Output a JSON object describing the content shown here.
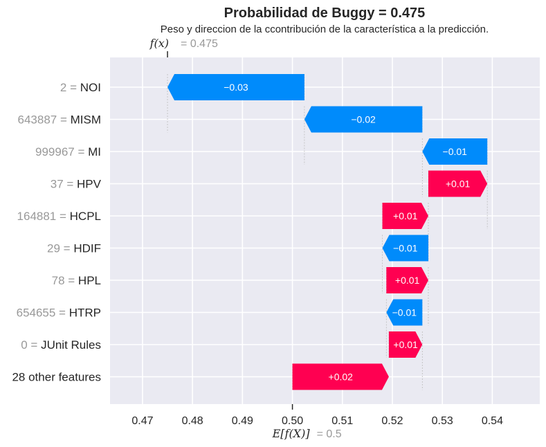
{
  "chart_data": {
    "type": "bar",
    "title": "Probabilidad de Buggy = 0.475",
    "subtitle": "Peso y direccion de la ccontribución de la característica a la predicción.",
    "fx_label": "f(x)",
    "fx_value_text": "= 0.475",
    "fx_value": 0.475,
    "base_label": "E[f(X)]",
    "base_value_text": "= 0.5",
    "base_value": 0.5,
    "xlim": [
      0.4635,
      0.5495
    ],
    "xticks": [
      0.47,
      0.48,
      0.49,
      0.5,
      0.51,
      0.52,
      0.53,
      0.54
    ],
    "xtick_labels": [
      "0.47",
      "0.48",
      "0.49",
      "0.50",
      "0.51",
      "0.52",
      "0.53",
      "0.54"
    ],
    "grid": true,
    "colors": {
      "positive": "#ff0051",
      "negative": "#008bfb",
      "background": "#eaeaf2",
      "grid": "#ffffff"
    },
    "features": [
      {
        "value": "2",
        "name": "NOI",
        "start": 0.5024,
        "end": 0.475,
        "label": "−0.03"
      },
      {
        "value": "643887",
        "name": "MISM",
        "start": 0.526,
        "end": 0.5024,
        "label": "−0.02"
      },
      {
        "value": "999967",
        "name": "MI",
        "start": 0.539,
        "end": 0.526,
        "label": "−0.01"
      },
      {
        "value": "37",
        "name": "HPV",
        "start": 0.5272,
        "end": 0.539,
        "label": "+0.01"
      },
      {
        "value": "164881",
        "name": "HCPL",
        "start": 0.518,
        "end": 0.5272,
        "label": "+0.01"
      },
      {
        "value": "29",
        "name": "HDIF",
        "start": 0.5272,
        "end": 0.518,
        "label": "−0.01"
      },
      {
        "value": "78",
        "name": "HPL",
        "start": 0.5188,
        "end": 0.5272,
        "label": "+0.01"
      },
      {
        "value": "654655",
        "name": "HTRP",
        "start": 0.526,
        "end": 0.5188,
        "label": "−0.01"
      },
      {
        "value": "0",
        "name": "JUnit Rules",
        "start": 0.5193,
        "end": 0.526,
        "label": "+0.01"
      },
      {
        "value": "",
        "name": "28 other features",
        "start": 0.5,
        "end": 0.5193,
        "label": "+0.02"
      }
    ]
  }
}
